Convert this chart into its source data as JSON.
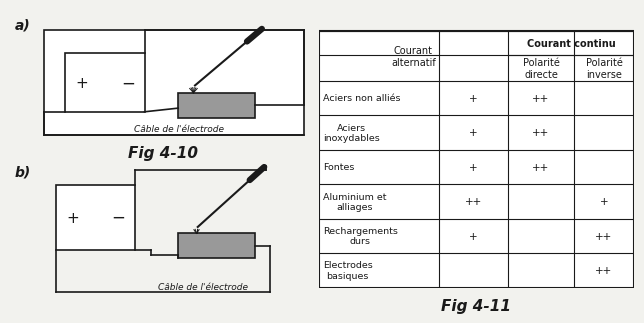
{
  "fig_label_a": "a)",
  "fig_label_b": "b)",
  "fig410_caption": "Fig 4-10",
  "fig411_caption": "Fig 4-11",
  "cable_label": "Câble de l'’électrode",
  "cable_label_a": "Câble de l’électrode",
  "cable_label_b": "Câble de l’électrode",
  "table_header_col2": "Courant\nalternatif",
  "table_header_col3": "Courant continu",
  "table_subheader_col3a": "Polarité\ndirecte",
  "table_subheader_col3b": "Polarité\ninverse",
  "table_rows": [
    [
      "Aciers non alliés",
      "+",
      "++",
      ""
    ],
    [
      "Aciers\ninoxydables",
      "+",
      "++",
      ""
    ],
    [
      "Fontes",
      "+",
      "++",
      ""
    ],
    [
      "Aluminium et\nalliages",
      "++",
      "",
      "+"
    ],
    [
      "Rechargements\ndurs",
      "+",
      "",
      "++"
    ],
    [
      "Electrodes\nbasiques",
      "",
      "",
      "++"
    ]
  ],
  "bg_color": "#f2f2ee",
  "line_color": "#1a1a1a",
  "gray_fill": "#999999"
}
